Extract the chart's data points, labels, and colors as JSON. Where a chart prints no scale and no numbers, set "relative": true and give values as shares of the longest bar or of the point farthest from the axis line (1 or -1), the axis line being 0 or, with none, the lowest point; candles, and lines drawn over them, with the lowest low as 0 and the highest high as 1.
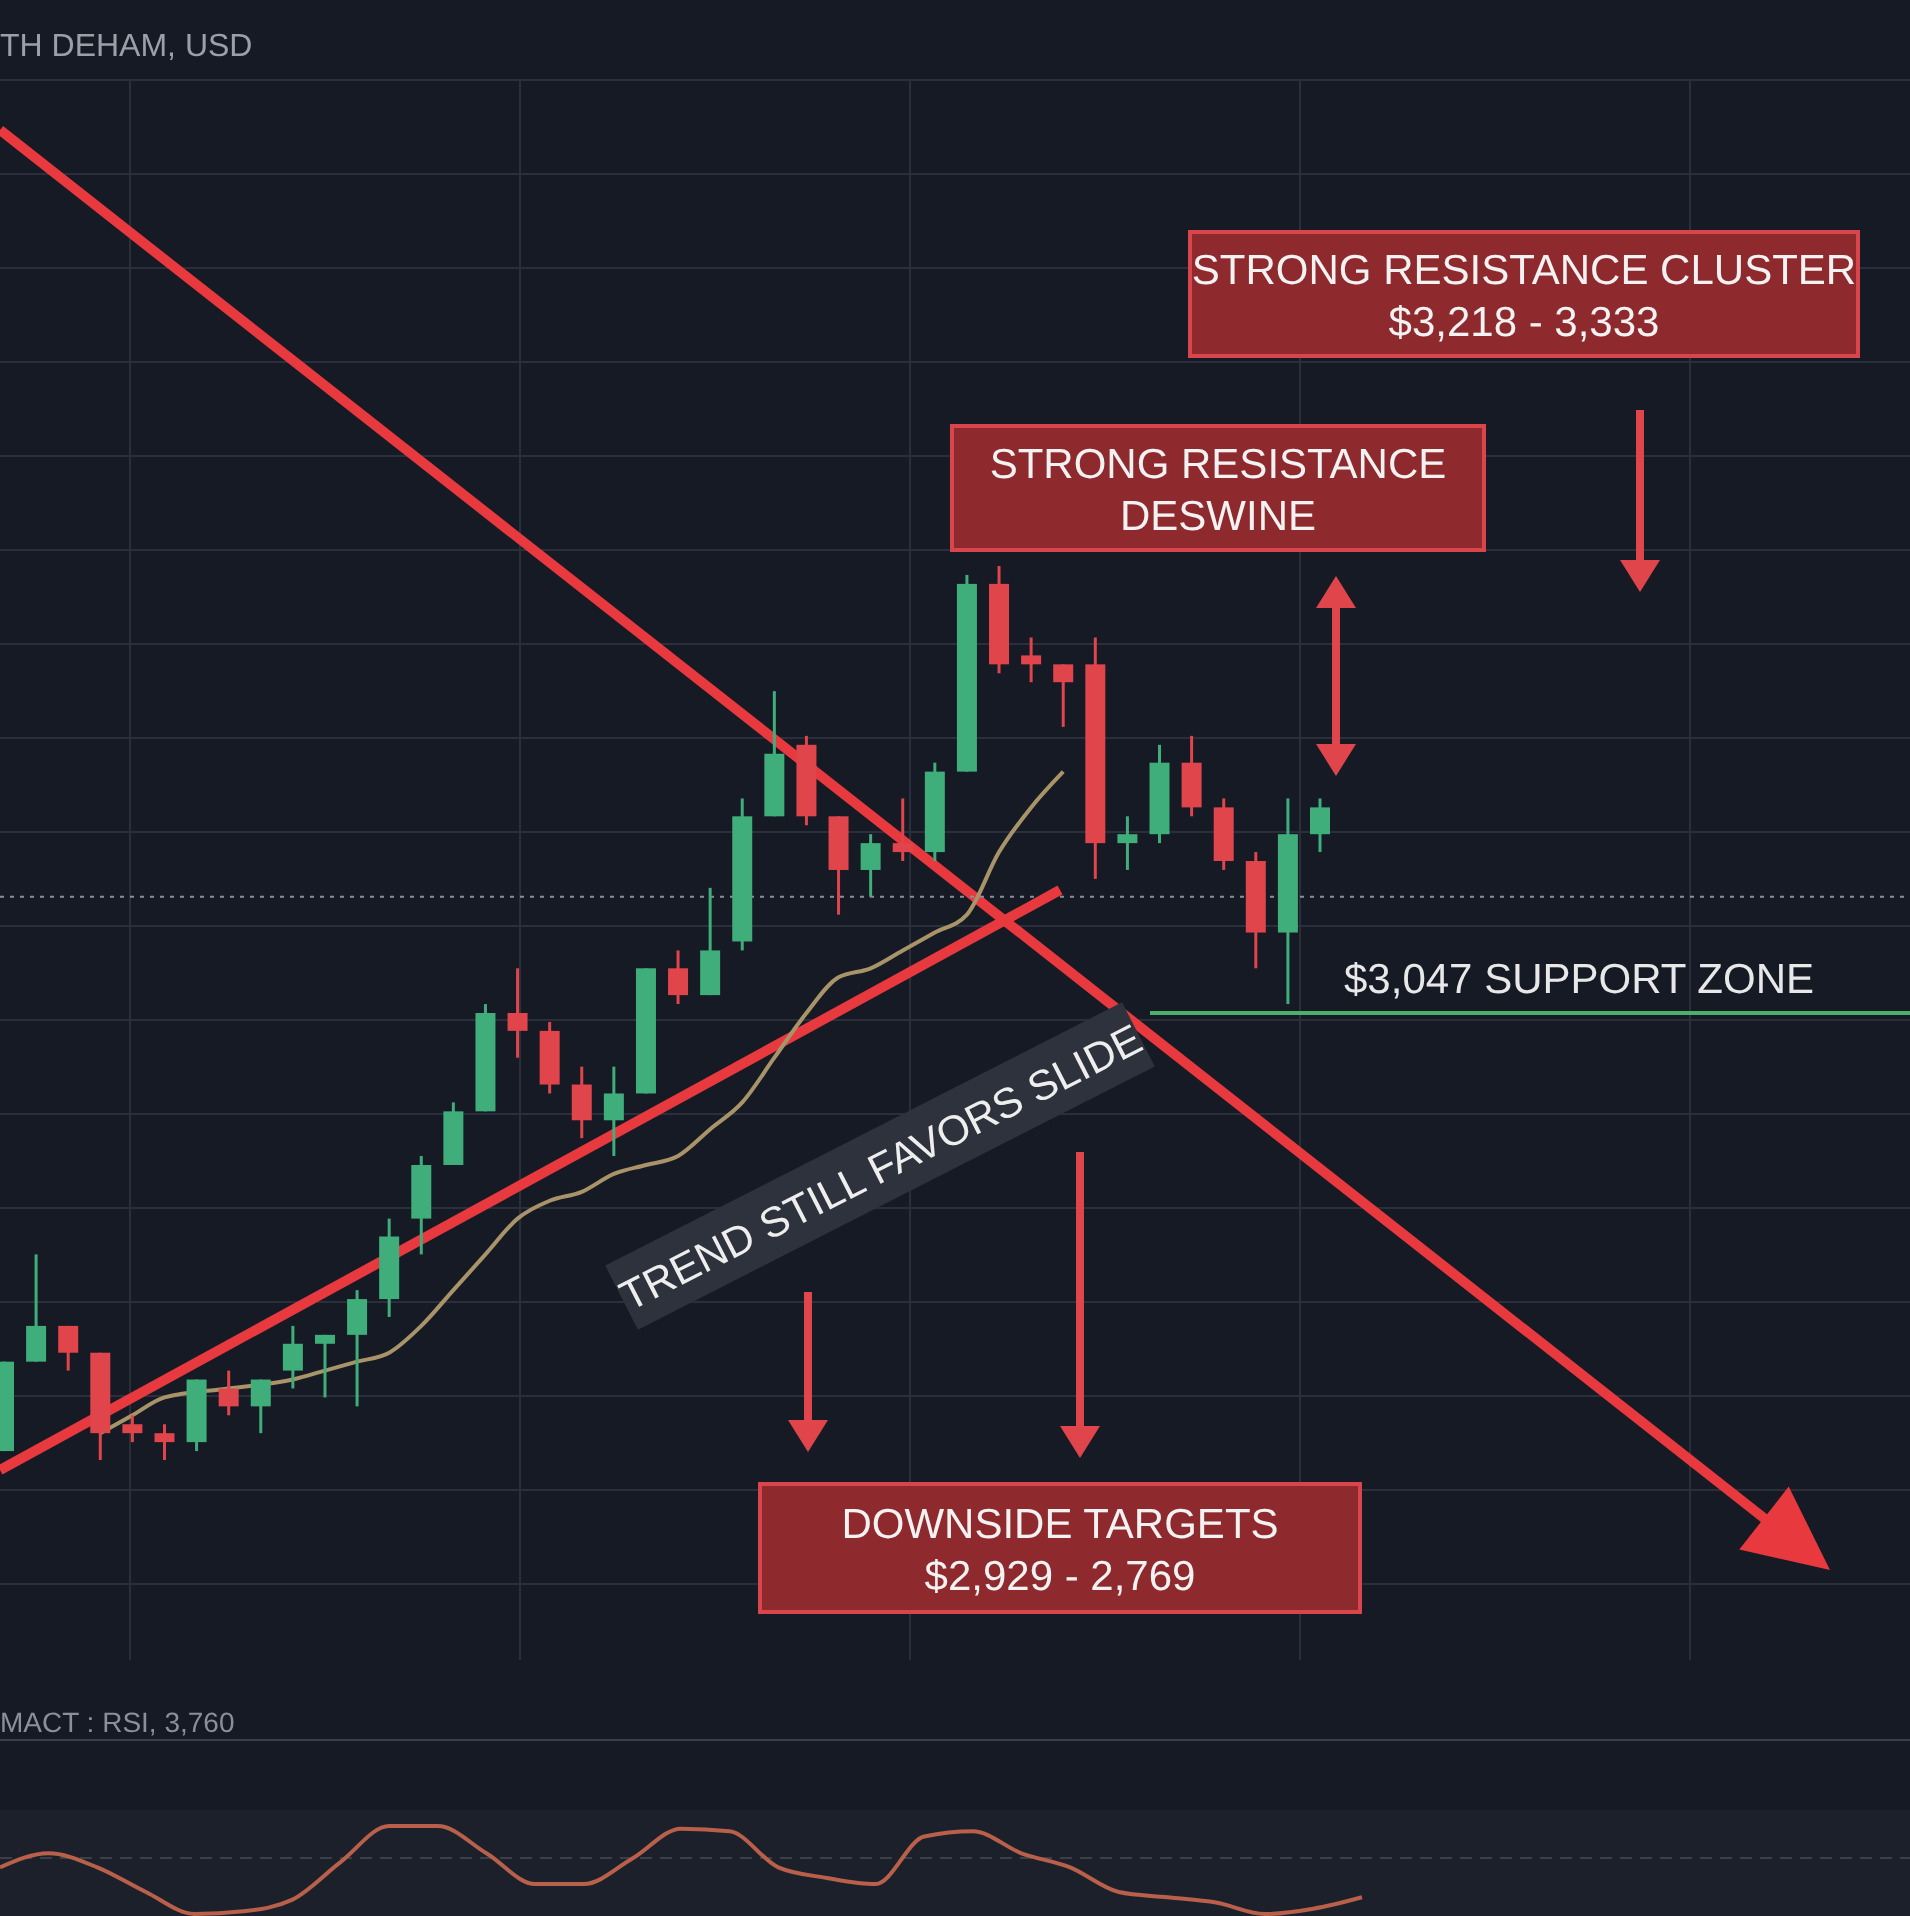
{
  "chart_data": [
    {
      "type": "candlestick",
      "title": "TH DEHAM, USD",
      "relative": true,
      "grid": true,
      "categories": [
        null,
        null,
        null,
        null,
        null,
        null,
        null,
        null,
        null,
        null,
        null,
        null,
        null,
        null,
        null,
        null,
        null,
        null,
        null,
        null,
        null,
        null,
        null,
        null,
        null,
        null,
        null,
        null,
        null,
        null,
        null,
        null,
        null,
        null,
        null,
        null,
        null,
        null,
        null,
        null,
        null,
        null
      ],
      "ohlc": [
        [
          0.01,
          0.11,
          0.01,
          0.11
        ],
        [
          0.11,
          0.23,
          0.11,
          0.15
        ],
        [
          0.15,
          0.15,
          0.1,
          0.12
        ],
        [
          0.12,
          0.12,
          0,
          0.03
        ],
        [
          0.04,
          0.05,
          0.02,
          0.03
        ],
        [
          0.03,
          0.04,
          0,
          0.02
        ],
        [
          0.02,
          0.09,
          0.01,
          0.09
        ],
        [
          0.08,
          0.1,
          0.05,
          0.06
        ],
        [
          0.06,
          0.09,
          0.03,
          0.09
        ],
        [
          0.1,
          0.15,
          0.08,
          0.13
        ],
        [
          0.13,
          0.14,
          0.07,
          0.14
        ],
        [
          0.14,
          0.19,
          0.06,
          0.18
        ],
        [
          0.18,
          0.27,
          0.16,
          0.25
        ],
        [
          0.27,
          0.34,
          0.23,
          0.33
        ],
        [
          0.33,
          0.4,
          0.33,
          0.39
        ],
        [
          0.39,
          0.51,
          0.39,
          0.5
        ],
        [
          0.5,
          0.55,
          0.45,
          0.48
        ],
        [
          0.48,
          0.49,
          0.41,
          0.42
        ],
        [
          0.42,
          0.44,
          0.36,
          0.38
        ],
        [
          0.38,
          0.44,
          0.34,
          0.41
        ],
        [
          0.41,
          0.55,
          0.41,
          0.55
        ],
        [
          0.55,
          0.57,
          0.51,
          0.52
        ],
        [
          0.52,
          0.64,
          0.52,
          0.57
        ],
        [
          0.58,
          0.74,
          0.57,
          0.72
        ],
        [
          0.72,
          0.86,
          0.72,
          0.79
        ],
        [
          0.8,
          0.81,
          0.71,
          0.72
        ],
        [
          0.72,
          0.72,
          0.61,
          0.66
        ],
        [
          0.66,
          0.7,
          0.63,
          0.69
        ],
        [
          0.69,
          0.74,
          0.67,
          0.68
        ],
        [
          0.68,
          0.78,
          0.67,
          0.77
        ],
        [
          0.77,
          0.99,
          0.77,
          0.98
        ],
        [
          0.98,
          1,
          0.88,
          0.89
        ],
        [
          0.9,
          0.92,
          0.87,
          0.89
        ],
        [
          0.89,
          0.89,
          0.82,
          0.87
        ],
        [
          0.89,
          0.92,
          0.65,
          0.69
        ],
        [
          0.69,
          0.72,
          0.66,
          0.7
        ],
        [
          0.7,
          0.8,
          0.69,
          0.78
        ],
        [
          0.78,
          0.81,
          0.72,
          0.73
        ],
        [
          0.73,
          0.74,
          0.66,
          0.67
        ],
        [
          0.67,
          0.68,
          0.55,
          0.59
        ],
        [
          0.59,
          0.74,
          0.51,
          0.7
        ],
        [
          0.7,
          0.74,
          0.68,
          0.73
        ]
      ],
      "series": [
        {
          "type": "line",
          "color": "#a89468",
          "values": [
            null,
            null,
            null,
            0.03,
            0.05,
            0.07,
            null,
            0.08,
            null,
            0.09,
            0.1,
            0.11,
            0.12,
            0.15,
            0.19,
            0.23,
            0.27,
            0.29,
            0.3,
            0.32,
            0.33,
            0.34,
            0.37,
            0.4,
            0.45,
            0.5,
            0.54,
            0.55,
            0.57,
            0.59,
            0.61,
            0.68,
            0.73,
            0.77,
            null,
            null,
            null,
            null,
            null,
            null,
            null,
            null
          ]
        }
      ],
      "ref_lines": [
        {
          "axis": "y",
          "value": 0.5,
          "label": "$3,047 SUPPORT ZONE",
          "color": "#4caf6a",
          "line_style": "solid"
        },
        {
          "axis": "y",
          "value": 0.63,
          "color": "#8a8f99",
          "line_style": "dotted"
        }
      ],
      "annotations": [
        "STRONG RESISTANCE CLUSTER\n$3,218 - 3,333",
        "STRONG RESISTANCE\nDESWINE",
        "DOWNSIDE TARGETS\n$2,929 - 2,769",
        "TREND STILL FAVORS SLIDE"
      ]
    },
    {
      "type": "line",
      "title": "MACT : RSI, 3,760",
      "relative": true,
      "categories": [
        null,
        null,
        null,
        null,
        null,
        null,
        null,
        null,
        null,
        null,
        null,
        null,
        null,
        null,
        null,
        null,
        null,
        null,
        null,
        null,
        null,
        null,
        null,
        null,
        null,
        null,
        null,
        null,
        null
      ],
      "color": "#b8604a",
      "values": [
        0.53,
        0.69,
        0.53,
        0.25,
        0,
        0.03,
        0.16,
        0.59,
        1,
        1,
        0.69,
        0.34,
        0.34,
        0.63,
        0.97,
        0.94,
        0.53,
        0.41,
        0.34,
        0.88,
        0.94,
        0.69,
        0.53,
        0.25,
        0.19,
        0.13,
        0,
        0.06,
        0.19
      ]
    }
  ]
}
